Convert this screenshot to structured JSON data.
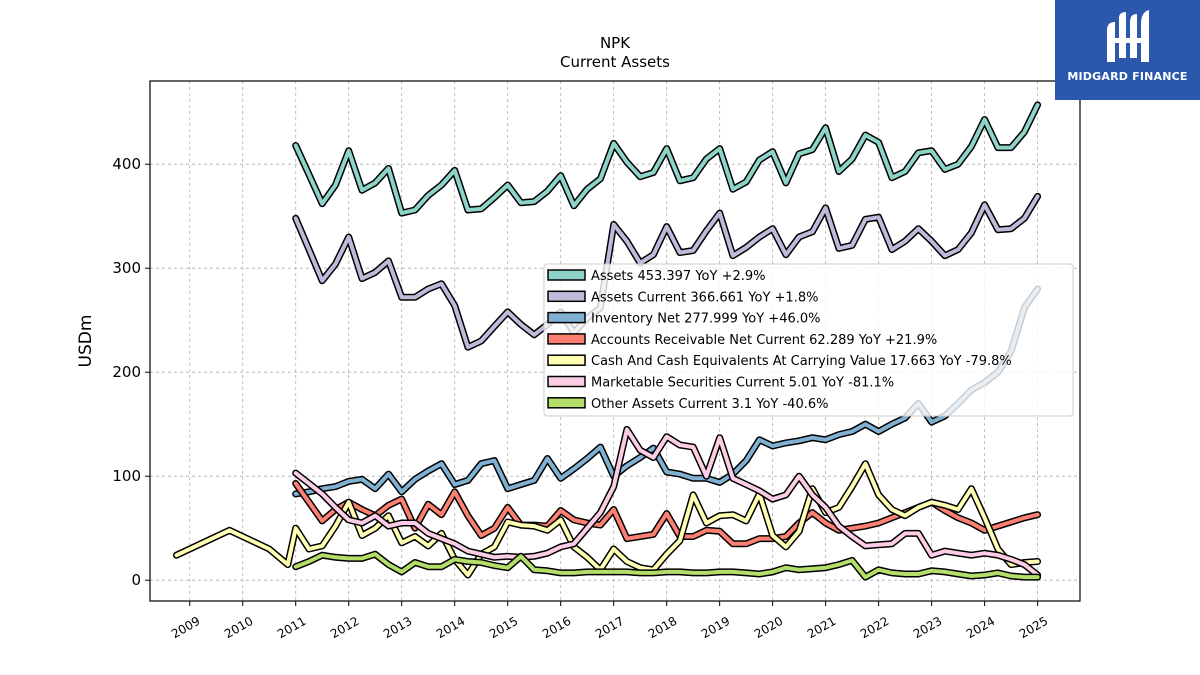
{
  "chart_data": {
    "type": "line",
    "title": "NPK",
    "subtitle": "Current  Assets",
    "ylabel": "USDm",
    "xlabel": "",
    "xlim": [
      2008.25,
      2025.8
    ],
    "ylim": [
      -20,
      480
    ],
    "x_ticks": [
      "2009",
      "2010",
      "2011",
      "2012",
      "2013",
      "2014",
      "2015",
      "2016",
      "2017",
      "2018",
      "2019",
      "2020",
      "2021",
      "2022",
      "2023",
      "2024",
      "2025"
    ],
    "y_ticks": [
      0,
      100,
      200,
      300,
      400
    ],
    "grid": true,
    "legend_position": "center-right",
    "series": [
      {
        "name": "Assets",
        "legend": "Assets  453.397 YoY +2.9%",
        "color": "#8dd3c7",
        "x": [
          2011.0,
          2011.25,
          2011.5,
          2011.75,
          2012.0,
          2012.25,
          2012.5,
          2012.75,
          2013.0,
          2013.25,
          2013.5,
          2013.75,
          2014.0,
          2014.25,
          2014.5,
          2014.75,
          2015.0,
          2015.25,
          2015.5,
          2015.75,
          2016.0,
          2016.25,
          2016.5,
          2016.75,
          2017.0,
          2017.25,
          2017.5,
          2017.75,
          2018.0,
          2018.25,
          2018.5,
          2018.75,
          2019.0,
          2019.25,
          2019.5,
          2019.75,
          2020.0,
          2020.25,
          2020.5,
          2020.75,
          2021.0,
          2021.25,
          2021.5,
          2021.75,
          2022.0,
          2022.25,
          2022.5,
          2022.75,
          2023.0,
          2023.25,
          2023.5,
          2023.75,
          2024.0,
          2024.25,
          2024.5,
          2024.75,
          2025.0
        ],
        "y": [
          418,
          390,
          362,
          380,
          413,
          375,
          382,
          396,
          353,
          356,
          370,
          380,
          394,
          356,
          357,
          368,
          380,
          363,
          364,
          374,
          389,
          360,
          376,
          386,
          420,
          402,
          388,
          392,
          415,
          384,
          387,
          405,
          415,
          376,
          383,
          404,
          412,
          382,
          410,
          414,
          435,
          393,
          405,
          428,
          421,
          387,
          393,
          411,
          413,
          395,
          400,
          417,
          443,
          416,
          416,
          431,
          457
        ]
      },
      {
        "name": "Assets Current",
        "legend": "Assets Current  366.661 YoY +1.8%",
        "color": "#bebada",
        "x": [
          2011.0,
          2011.25,
          2011.5,
          2011.75,
          2012.0,
          2012.25,
          2012.5,
          2012.75,
          2013.0,
          2013.25,
          2013.5,
          2013.75,
          2014.0,
          2014.25,
          2014.5,
          2014.75,
          2015.0,
          2015.25,
          2015.5,
          2015.75,
          2016.0,
          2016.25,
          2016.5,
          2016.75,
          2017.0,
          2017.25,
          2017.5,
          2017.75,
          2018.0,
          2018.25,
          2018.5,
          2018.75,
          2019.0,
          2019.25,
          2019.5,
          2019.75,
          2020.0,
          2020.25,
          2020.5,
          2020.75,
          2021.0,
          2021.25,
          2021.5,
          2021.75,
          2022.0,
          2022.25,
          2022.5,
          2022.75,
          2023.0,
          2023.25,
          2023.5,
          2023.75,
          2024.0,
          2024.25,
          2024.5,
          2024.75,
          2025.0
        ],
        "y": [
          348,
          318,
          288,
          304,
          330,
          290,
          296,
          307,
          272,
          272,
          280,
          285,
          264,
          224,
          230,
          244,
          258,
          246,
          236,
          246,
          258,
          238,
          252,
          262,
          342,
          326,
          305,
          313,
          340,
          315,
          317,
          336,
          353,
          312,
          320,
          330,
          338,
          313,
          330,
          335,
          358,
          319,
          322,
          347,
          349,
          318,
          326,
          338,
          326,
          312,
          318,
          334,
          361,
          337,
          338,
          348,
          369
        ]
      },
      {
        "name": "Inventory Net",
        "legend": "Inventory Net  277.999 YoY +46.0%",
        "color": "#80b1d3",
        "x": [
          2011.0,
          2011.25,
          2011.5,
          2011.75,
          2012.0,
          2012.25,
          2012.5,
          2012.75,
          2013.0,
          2013.25,
          2013.5,
          2013.75,
          2014.0,
          2014.25,
          2014.5,
          2014.75,
          2015.0,
          2015.25,
          2015.5,
          2015.75,
          2016.0,
          2016.25,
          2016.5,
          2016.75,
          2017.0,
          2017.25,
          2017.5,
          2017.75,
          2018.0,
          2018.25,
          2018.5,
          2018.75,
          2019.0,
          2019.25,
          2019.5,
          2019.75,
          2020.0,
          2020.25,
          2020.5,
          2020.75,
          2021.0,
          2021.25,
          2021.5,
          2021.75,
          2022.0,
          2022.25,
          2022.5,
          2022.75,
          2023.0,
          2023.25,
          2023.5,
          2023.75,
          2024.0,
          2024.25,
          2024.5,
          2024.75,
          2025.0
        ],
        "y": [
          83,
          85,
          88,
          90,
          95,
          97,
          88,
          102,
          85,
          97,
          105,
          112,
          92,
          96,
          112,
          115,
          88,
          92,
          96,
          117,
          98,
          107,
          117,
          128,
          100,
          110,
          118,
          127,
          104,
          102,
          98,
          98,
          94,
          102,
          115,
          135,
          129,
          132,
          134,
          137,
          135,
          140,
          143,
          150,
          143,
          150,
          156,
          170,
          152,
          158,
          170,
          183,
          190,
          200,
          220,
          262,
          280
        ]
      },
      {
        "name": "Accounts Receivable Net Current",
        "legend": "Accounts Receivable Net Current  62.289 YoY +21.9%",
        "color": "#fb8072",
        "x": [
          2011.0,
          2011.25,
          2011.5,
          2011.75,
          2012.0,
          2012.25,
          2012.5,
          2012.75,
          2013.0,
          2013.25,
          2013.5,
          2013.75,
          2014.0,
          2014.25,
          2014.5,
          2014.75,
          2015.0,
          2015.25,
          2015.5,
          2015.75,
          2016.0,
          2016.25,
          2016.5,
          2016.75,
          2017.0,
          2017.25,
          2017.5,
          2017.75,
          2018.0,
          2018.25,
          2018.5,
          2018.75,
          2019.0,
          2019.25,
          2019.5,
          2019.75,
          2020.0,
          2020.25,
          2020.5,
          2020.75,
          2021.0,
          2021.25,
          2021.5,
          2021.75,
          2022.0,
          2022.25,
          2022.5,
          2022.75,
          2023.0,
          2023.25,
          2023.5,
          2023.75,
          2024.0,
          2024.25,
          2024.5,
          2024.75,
          2025.0
        ],
        "y": [
          93,
          75,
          57,
          68,
          75,
          68,
          62,
          72,
          78,
          50,
          73,
          63,
          85,
          62,
          43,
          50,
          70,
          53,
          53,
          52,
          67,
          58,
          55,
          53,
          68,
          40,
          42,
          44,
          64,
          42,
          42,
          48,
          47,
          35,
          35,
          40,
          40,
          42,
          55,
          65,
          55,
          48,
          50,
          52,
          55,
          60,
          65,
          70,
          75,
          67,
          60,
          55,
          48,
          52,
          56,
          60,
          63
        ]
      },
      {
        "name": "Cash And Cash Equivalents At Carrying Value",
        "legend": "Cash And Cash Equivalents At Carrying Value  17.663 YoY -79.8%",
        "color": "#ffffb3",
        "x": [
          2008.75,
          2009.75,
          2010.5,
          2010.85,
          2011.0,
          2011.25,
          2011.5,
          2011.75,
          2012.0,
          2012.25,
          2012.5,
          2012.75,
          2013.0,
          2013.25,
          2013.5,
          2013.75,
          2014.0,
          2014.25,
          2014.5,
          2014.75,
          2015.0,
          2015.25,
          2015.5,
          2015.75,
          2016.0,
          2016.25,
          2016.5,
          2016.75,
          2017.0,
          2017.25,
          2017.5,
          2017.75,
          2018.0,
          2018.25,
          2018.5,
          2018.75,
          2019.0,
          2019.25,
          2019.5,
          2019.75,
          2020.0,
          2020.25,
          2020.5,
          2020.75,
          2021.0,
          2021.25,
          2021.5,
          2021.75,
          2022.0,
          2022.25,
          2022.5,
          2022.75,
          2023.0,
          2023.25,
          2023.5,
          2023.75,
          2024.0,
          2024.25,
          2024.5,
          2024.75,
          2025.0
        ],
        "y": [
          24,
          48,
          30,
          15,
          50,
          30,
          33,
          52,
          75,
          43,
          50,
          62,
          36,
          42,
          33,
          45,
          20,
          5,
          25,
          32,
          56,
          53,
          52,
          48,
          58,
          32,
          22,
          10,
          30,
          18,
          12,
          10,
          25,
          38,
          82,
          55,
          62,
          63,
          57,
          83,
          43,
          32,
          47,
          88,
          65,
          70,
          90,
          112,
          82,
          68,
          62,
          70,
          75,
          72,
          68,
          88,
          60,
          30,
          15,
          17,
          18
        ]
      },
      {
        "name": "Marketable Securities Current",
        "legend": "Marketable Securities Current  5.01 YoY -81.1%",
        "color": "#fccde5",
        "x": [
          2011.0,
          2011.25,
          2011.5,
          2011.75,
          2012.0,
          2012.25,
          2012.5,
          2012.75,
          2013.0,
          2013.25,
          2013.5,
          2013.75,
          2014.0,
          2014.25,
          2014.5,
          2014.75,
          2015.0,
          2015.25,
          2015.5,
          2015.75,
          2016.0,
          2016.25,
          2016.5,
          2016.75,
          2017.0,
          2017.25,
          2017.5,
          2017.75,
          2018.0,
          2018.25,
          2018.5,
          2018.75,
          2019.0,
          2019.25,
          2019.5,
          2019.75,
          2020.0,
          2020.25,
          2020.5,
          2020.75,
          2021.0,
          2021.25,
          2021.5,
          2021.75,
          2022.0,
          2022.25,
          2022.5,
          2022.75,
          2023.0,
          2023.25,
          2023.5,
          2023.75,
          2024.0,
          2024.25,
          2024.5,
          2024.75,
          2025.0
        ],
        "y": [
          103,
          93,
          83,
          70,
          58,
          55,
          62,
          52,
          55,
          55,
          45,
          40,
          35,
          28,
          25,
          22,
          23,
          22,
          23,
          26,
          32,
          35,
          50,
          65,
          90,
          145,
          125,
          118,
          138,
          130,
          128,
          100,
          137,
          98,
          92,
          86,
          78,
          82,
          100,
          82,
          70,
          52,
          42,
          33,
          34,
          35,
          45,
          45,
          24,
          28,
          26,
          24,
          26,
          24,
          20,
          15,
          5
        ]
      },
      {
        "name": "Other Assets Current",
        "legend": "Other Assets Current  3.1 YoY -40.6%",
        "color": "#b3de69",
        "x": [
          2011.0,
          2011.25,
          2011.5,
          2011.75,
          2012.0,
          2012.25,
          2012.5,
          2012.75,
          2013.0,
          2013.25,
          2013.5,
          2013.75,
          2014.0,
          2014.25,
          2014.5,
          2014.75,
          2015.0,
          2015.25,
          2015.5,
          2015.75,
          2016.0,
          2016.25,
          2016.5,
          2016.75,
          2017.0,
          2017.25,
          2017.5,
          2017.75,
          2018.0,
          2018.25,
          2018.5,
          2018.75,
          2019.0,
          2019.25,
          2019.5,
          2019.75,
          2020.0,
          2020.25,
          2020.5,
          2020.75,
          2021.0,
          2021.25,
          2021.5,
          2021.75,
          2022.0,
          2022.25,
          2022.5,
          2022.75,
          2023.0,
          2023.25,
          2023.5,
          2023.75,
          2024.0,
          2024.25,
          2024.5,
          2024.75,
          2025.0
        ],
        "y": [
          13,
          18,
          24,
          22,
          21,
          21,
          25,
          15,
          8,
          17,
          13,
          13,
          20,
          18,
          17,
          14,
          12,
          23,
          10,
          9,
          7,
          7,
          8,
          8,
          8,
          8,
          7,
          7,
          8,
          8,
          7,
          7,
          8,
          8,
          7,
          6,
          8,
          12,
          10,
          11,
          12,
          15,
          19,
          3,
          10,
          7,
          6,
          6,
          9,
          8,
          6,
          4,
          5,
          7,
          4,
          3,
          3
        ]
      }
    ]
  },
  "logo": {
    "text": "MIDGARD FINANCE"
  }
}
